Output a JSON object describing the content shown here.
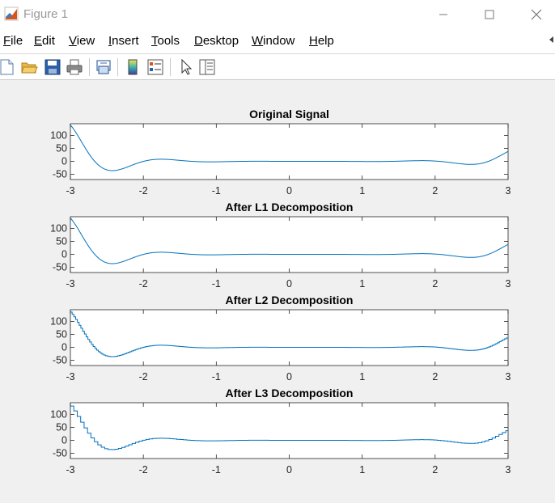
{
  "window": {
    "title": "Figure 1",
    "minimize_glyph": "—",
    "maximize_glyph": "☐",
    "close_glyph": "✕"
  },
  "menu": [
    {
      "label": "File",
      "underline": "F",
      "rest": "ile"
    },
    {
      "label": "Edit",
      "underline": "E",
      "rest": "dit"
    },
    {
      "label": "View",
      "underline": "V",
      "rest": "iew"
    },
    {
      "label": "Insert",
      "underline": "I",
      "rest": "nsert"
    },
    {
      "label": "Tools",
      "underline": "T",
      "rest": "ools"
    },
    {
      "label": "Desktop",
      "underline": "D",
      "rest": "esktop"
    },
    {
      "label": "Window",
      "underline": "W",
      "rest": "indow"
    },
    {
      "label": "Help",
      "underline": "H",
      "rest": "elp"
    }
  ],
  "toolbar": {
    "icons": [
      "new-figure-icon",
      "open-file-icon",
      "save-icon",
      "print-icon",
      "link-plot-icon",
      "insert-colorbar-icon",
      "insert-legend-icon",
      "edit-plot-icon",
      "property-inspector-icon"
    ]
  },
  "colors": {
    "line": "#0072bd",
    "axes": "#262626"
  },
  "chart_data": [
    {
      "type": "line",
      "title": "Original Signal",
      "xlim": [
        -3,
        3
      ],
      "ylim": [
        -70,
        145
      ],
      "xticks": [
        -3,
        -2,
        -1,
        0,
        1,
        2,
        3
      ],
      "yticks": [
        -50,
        0,
        50,
        100
      ],
      "signal": "smooth",
      "step": 0
    },
    {
      "type": "line",
      "title": "After L1 Decomposition",
      "xlim": [
        -3,
        3
      ],
      "ylim": [
        -70,
        145
      ],
      "xticks": [
        -3,
        -2,
        -1,
        0,
        1,
        2,
        3
      ],
      "yticks": [
        -50,
        0,
        50,
        100
      ],
      "signal": "smooth",
      "step": 0
    },
    {
      "type": "line",
      "title": "After L2 Decomposition",
      "xlim": [
        -3,
        3
      ],
      "ylim": [
        -70,
        145
      ],
      "xticks": [
        -3,
        -2,
        -1,
        0,
        1,
        2,
        3
      ],
      "yticks": [
        -50,
        0,
        50,
        100
      ],
      "signal": "staircase",
      "step": 0.024
    },
    {
      "type": "line",
      "title": "After L3 Decomposition",
      "xlim": [
        -3,
        3
      ],
      "ylim": [
        -70,
        145
      ],
      "xticks": [
        -3,
        -2,
        -1,
        0,
        1,
        2,
        3
      ],
      "yticks": [
        -50,
        0,
        50,
        100
      ],
      "signal": "staircase",
      "step": 0.047
    }
  ]
}
